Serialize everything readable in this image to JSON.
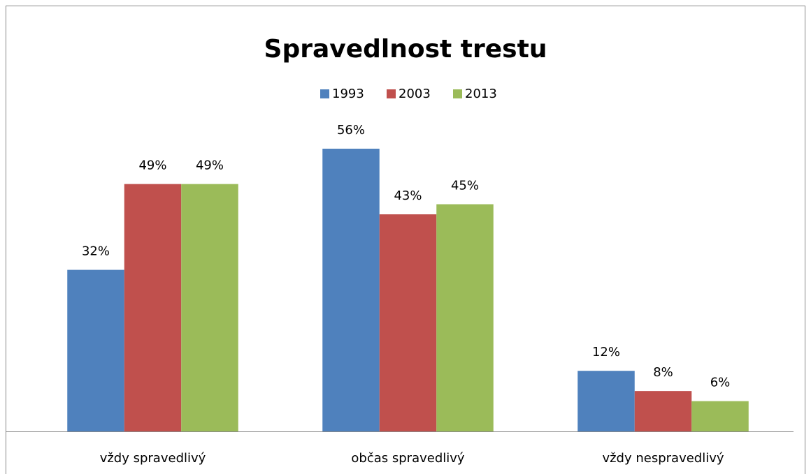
{
  "chart_data": {
    "type": "bar",
    "title": "Spravedlnost trestu",
    "categories": [
      "vždy spravedlivý",
      "občas spravedlivý",
      "vždy nespravedlivý"
    ],
    "series": [
      {
        "name": "1993",
        "color": "#4f81bd",
        "values": [
          32,
          56,
          12
        ],
        "value_labels": [
          "32%",
          "56%",
          "12%"
        ]
      },
      {
        "name": "2003",
        "color": "#c0504d",
        "values": [
          49,
          43,
          8
        ],
        "value_labels": [
          "49%",
          "43%",
          "8%"
        ]
      },
      {
        "name": "2013",
        "color": "#9bbb59",
        "values": [
          49,
          45,
          6
        ],
        "value_labels": [
          "49%",
          "45%",
          "6%"
        ]
      }
    ],
    "legend": "top"
  }
}
